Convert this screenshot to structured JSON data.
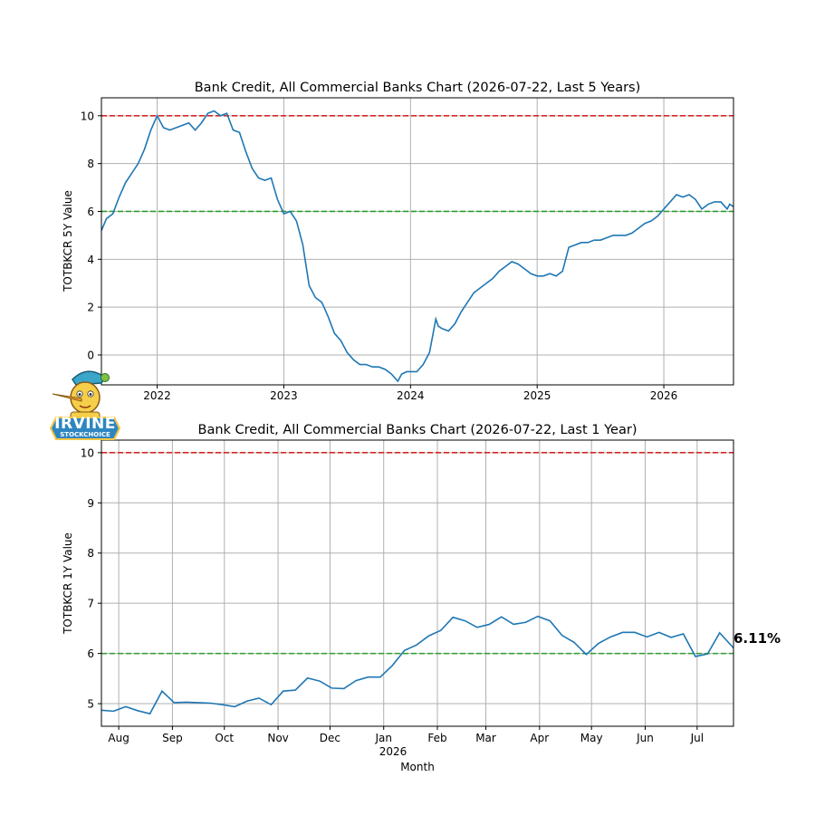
{
  "logo": {
    "text": "IRVINE",
    "subtext": "STOCKCHOICE"
  },
  "annotation": {
    "last_value_label": "6.11%"
  },
  "colors": {
    "series": "#1f77b4",
    "upper_line": "#d62728",
    "lower_line": "#2ca02c",
    "grid": "#b0b0b0"
  },
  "chart_data": [
    {
      "type": "line",
      "title": "Bank Credit, All Commercial Banks Chart (2026-07-22, Last 5 Years)",
      "xlabel": "",
      "ylabel": "TOTBKCR 5Y Value",
      "xlim": [
        2021.56,
        2026.55
      ],
      "ylim": [
        -1.25,
        10.75
      ],
      "x_ticks": [
        2022,
        2023,
        2024,
        2025,
        2026
      ],
      "x_tick_labels": [
        "2022",
        "2023",
        "2024",
        "2025",
        "2026"
      ],
      "y_ticks": [
        0,
        2,
        4,
        6,
        8,
        10
      ],
      "y_tick_labels": [
        "0",
        "2",
        "4",
        "6",
        "8",
        "10"
      ],
      "grid": true,
      "hlines": [
        {
          "y": 10,
          "style": "dashed",
          "color": "red"
        },
        {
          "y": 6,
          "style": "dashed",
          "color": "green"
        }
      ],
      "series": [
        {
          "x": [
            2021.56,
            2021.6,
            2021.65,
            2021.7,
            2021.75,
            2021.8,
            2021.85,
            2021.9,
            2021.95,
            2022.0,
            2022.05,
            2022.1,
            2022.15,
            2022.2,
            2022.25,
            2022.3,
            2022.35,
            2022.4,
            2022.45,
            2022.5,
            2022.55,
            2022.6,
            2022.65,
            2022.7,
            2022.75,
            2022.8,
            2022.85,
            2022.9,
            2022.95,
            2023.0,
            2023.05,
            2023.1,
            2023.15,
            2023.2,
            2023.25,
            2023.3,
            2023.35,
            2023.4,
            2023.45,
            2023.5,
            2023.55,
            2023.6,
            2023.65,
            2023.7,
            2023.75,
            2023.8,
            2023.85,
            2023.9,
            2023.93,
            2023.97,
            2024.0,
            2024.05,
            2024.1,
            2024.15,
            2024.2,
            2024.22,
            2024.25,
            2024.3,
            2024.35,
            2024.4,
            2024.45,
            2024.5,
            2024.55,
            2024.6,
            2024.65,
            2024.7,
            2024.75,
            2024.8,
            2024.85,
            2024.9,
            2024.95,
            2025.0,
            2025.05,
            2025.1,
            2025.15,
            2025.2,
            2025.25,
            2025.3,
            2025.35,
            2025.4,
            2025.45,
            2025.5,
            2025.55,
            2025.6,
            2025.65,
            2025.7,
            2025.75,
            2025.8,
            2025.85,
            2025.9,
            2025.95,
            2026.0,
            2026.05,
            2026.1,
            2026.15,
            2026.2,
            2026.25,
            2026.3,
            2026.35,
            2026.4,
            2026.45,
            2026.5,
            2026.52,
            2026.55
          ],
          "y": [
            5.2,
            5.7,
            5.9,
            6.6,
            7.2,
            7.6,
            8.0,
            8.6,
            9.4,
            10.0,
            9.5,
            9.4,
            9.5,
            9.6,
            9.7,
            9.4,
            9.7,
            10.1,
            10.2,
            10.0,
            10.1,
            9.4,
            9.3,
            8.5,
            7.8,
            7.4,
            7.3,
            7.4,
            6.5,
            5.9,
            6.0,
            5.6,
            4.6,
            2.9,
            2.4,
            2.2,
            1.6,
            0.9,
            0.6,
            0.1,
            -0.2,
            -0.4,
            -0.4,
            -0.5,
            -0.5,
            -0.6,
            -0.8,
            -1.1,
            -0.8,
            -0.7,
            -0.7,
            -0.7,
            -0.4,
            0.1,
            1.5,
            1.2,
            1.1,
            1.0,
            1.3,
            1.8,
            2.2,
            2.6,
            2.8,
            3.0,
            3.2,
            3.5,
            3.7,
            3.9,
            3.8,
            3.6,
            3.4,
            3.3,
            3.3,
            3.4,
            3.3,
            3.5,
            4.5,
            4.6,
            4.7,
            4.7,
            4.8,
            4.8,
            4.9,
            5.0,
            5.0,
            5.0,
            5.1,
            5.3,
            5.5,
            5.6,
            5.8,
            6.1,
            6.4,
            6.7,
            6.6,
            6.7,
            6.5,
            6.1,
            6.3,
            6.4,
            6.4,
            6.1,
            6.3,
            6.2
          ]
        }
      ]
    },
    {
      "type": "line",
      "title": "Bank Credit, All Commercial Banks Chart (2026-07-22, Last 1 Year)",
      "xlabel": "Month",
      "ylabel": "TOTBKCR 1Y Value",
      "xlim": [
        "2025-07-22",
        "2026-07-22"
      ],
      "ylim": [
        4.55,
        10.25
      ],
      "x_ticks": [
        "2025-08-01",
        "2025-09-01",
        "2025-10-01",
        "2025-11-01",
        "2025-12-01",
        "2026-01-01",
        "2026-02-01",
        "2026-03-01",
        "2026-04-01",
        "2026-05-01",
        "2026-06-01",
        "2026-07-01"
      ],
      "x_tick_labels": [
        "Aug",
        "Sep",
        "Oct",
        "Nov",
        "Dec",
        "Jan",
        "Feb",
        "Mar",
        "Apr",
        "May",
        "Jun",
        "Jul"
      ],
      "x_year_label": "2026",
      "y_ticks": [
        5,
        6,
        7,
        8,
        9,
        10
      ],
      "y_tick_labels": [
        "5",
        "6",
        "7",
        "8",
        "9",
        "10"
      ],
      "grid": true,
      "hlines": [
        {
          "y": 10,
          "style": "dashed",
          "color": "red"
        },
        {
          "y": 6,
          "style": "dashed",
          "color": "green"
        }
      ],
      "series": [
        {
          "x": [
            "2025-07-22",
            "2025-07-29",
            "2025-08-05",
            "2025-08-12",
            "2025-08-19",
            "2025-08-26",
            "2025-09-02",
            "2025-09-09",
            "2025-09-16",
            "2025-09-23",
            "2025-09-30",
            "2025-10-07",
            "2025-10-14",
            "2025-10-21",
            "2025-10-28",
            "2025-11-04",
            "2025-11-11",
            "2025-11-18",
            "2025-11-25",
            "2025-12-02",
            "2025-12-09",
            "2025-12-16",
            "2025-12-23",
            "2025-12-30",
            "2026-01-06",
            "2026-01-13",
            "2026-01-20",
            "2026-01-27",
            "2026-02-03",
            "2026-02-10",
            "2026-02-17",
            "2026-02-24",
            "2026-03-03",
            "2026-03-10",
            "2026-03-17",
            "2026-03-24",
            "2026-03-31",
            "2026-04-07",
            "2026-04-14",
            "2026-04-21",
            "2026-04-28",
            "2026-05-05",
            "2026-05-12",
            "2026-05-19",
            "2026-05-26",
            "2026-06-02",
            "2026-06-09",
            "2026-06-16",
            "2026-06-23",
            "2026-06-30",
            "2026-07-07",
            "2026-07-14",
            "2026-07-22"
          ],
          "y": [
            4.87,
            4.85,
            4.94,
            4.86,
            4.8,
            5.25,
            5.02,
            5.03,
            5.02,
            5.01,
            4.98,
            4.94,
            5.05,
            5.11,
            4.98,
            5.25,
            5.27,
            5.51,
            5.45,
            5.31,
            5.3,
            5.46,
            5.53,
            5.53,
            5.76,
            6.06,
            6.17,
            6.35,
            6.46,
            6.72,
            6.65,
            6.52,
            6.58,
            6.73,
            6.58,
            6.62,
            6.74,
            6.65,
            6.36,
            6.22,
            5.98,
            6.2,
            6.33,
            6.42,
            6.42,
            6.33,
            6.42,
            6.32,
            6.39,
            5.94,
            5.99,
            6.41,
            6.11
          ]
        }
      ]
    }
  ]
}
